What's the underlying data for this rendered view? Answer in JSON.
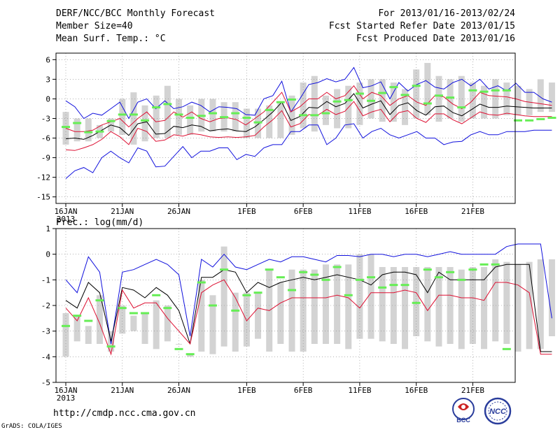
{
  "header": {
    "title": "DERF/NCC/BCC Monthly Forecast",
    "member": "Member Size=40",
    "variable": "Mean Surf. Temp.: °C",
    "period": "For 2013/01/16-2013/02/24",
    "started": "Fcst Started Refer Date 2013/01/15",
    "produced": "Fcst Produced Date 2013/01/16"
  },
  "footer": {
    "url": "http://cmdp.ncc.cma.gov.cn",
    "credit": "GrADS: COLA/IGES"
  },
  "logos": {
    "bcc": "BCC",
    "ncc": "NCC"
  },
  "colors": {
    "box": "#d3d3d3",
    "green": "#66ee55",
    "red": "#dd1133",
    "blue": "#1111dd",
    "black": "#000000"
  },
  "chart_data": [
    {
      "type": "line",
      "title": "Mean Surf. Temp.: °C",
      "ylim": [
        -16,
        7
      ],
      "yticks": [
        6,
        3,
        0,
        -3,
        -6,
        -9,
        -12,
        -15
      ],
      "xticks": [
        "16JAN",
        "21JAN",
        "26JAN",
        "1FEB",
        "6FEB",
        "11FEB",
        "16FEB",
        "21FEB"
      ],
      "xtick_days": [
        0,
        5,
        10,
        16,
        21,
        26,
        31,
        36
      ],
      "year_label": "2013",
      "series": [
        {
          "name": "max",
          "values": [
            -0.3,
            -1.2,
            -3,
            -2.2,
            -2.5,
            -1.5,
            -0.5,
            -3,
            -0.5,
            0,
            -1.5,
            -0.3,
            -1.5,
            -1.2,
            -0.5,
            -1,
            -2,
            -1.2,
            -1.3,
            -1.5,
            -2.4,
            -2.5,
            0,
            0.5,
            2.7,
            -2,
            0,
            2.2,
            2.5,
            3.1,
            2.6,
            3,
            4.8,
            1.7,
            2,
            2.6,
            0,
            2.5,
            1.2,
            2.2,
            2.8,
            1.8,
            1.5,
            2.5,
            3,
            2,
            3,
            1.5,
            2,
            1.2,
            2.4,
            1,
            1,
            0,
            -0.5
          ]
        },
        {
          "name": "upper",
          "values": [
            -4.5,
            -5,
            -5,
            -4.8,
            -4,
            -3.5,
            -3,
            -4.3,
            -3,
            -2,
            -3.5,
            -3.3,
            -2,
            -2.8,
            -2,
            -3,
            -3.5,
            -3,
            -2.9,
            -3.2,
            -4,
            -3,
            -2,
            -0.5,
            1,
            -2,
            -1.2,
            0,
            0,
            1,
            0,
            0.5,
            2,
            0,
            1,
            0.5,
            -1,
            0,
            0.5,
            -0.5,
            -1,
            0.5,
            0.3,
            -0.8,
            -1.5,
            -0.5,
            1,
            0.5,
            0.4,
            0.3,
            0,
            -0.4,
            -0.6,
            -0.8,
            -1
          ]
        },
        {
          "name": "mean",
          "values": [
            -6.1,
            -6,
            -6.2,
            -5.6,
            -4.8,
            -4,
            -4.4,
            -5.6,
            -3.8,
            -3.5,
            -5.4,
            -5.3,
            -4.2,
            -4.4,
            -4,
            -4.2,
            -4.9,
            -4.7,
            -4.6,
            -4.9,
            -5,
            -4.3,
            -3.2,
            -2,
            -0.5,
            -3.3,
            -2.7,
            -1.3,
            -1.4,
            -0.4,
            -1.2,
            -0.7,
            0.8,
            -1.4,
            -0.8,
            -0.3,
            -2.4,
            -1,
            -0.6,
            -1.8,
            -2.5,
            -1.2,
            -1.1,
            -2.1,
            -2.6,
            -1.7,
            -0.8,
            -1.3,
            -1.3,
            -1.1,
            -1.2,
            -1.3,
            -1.4,
            -1.4,
            -1.4
          ]
        },
        {
          "name": "lower",
          "values": [
            -7.8,
            -7.9,
            -7.5,
            -7,
            -6.2,
            -5,
            -5.8,
            -7,
            -4.5,
            -5,
            -6.5,
            -6.3,
            -5.5,
            -5.7,
            -5.3,
            -5.5,
            -5.8,
            -5.9,
            -5.8,
            -5.9,
            -5.8,
            -5.6,
            -4.3,
            -3.2,
            -1.8,
            -4.3,
            -3.8,
            -2.4,
            -2.5,
            -1.6,
            -2.4,
            -1.9,
            -0.4,
            -2.6,
            -2,
            -1.6,
            -3.5,
            -2.1,
            -1.8,
            -3,
            -3.6,
            -2.3,
            -2.3,
            -3.2,
            -3.8,
            -2.9,
            -2,
            -2.4,
            -2.5,
            -2.2,
            -2.4,
            -2.6,
            -2.7,
            -2.7,
            -2.7
          ]
        },
        {
          "name": "min",
          "values": [
            -12.2,
            -11,
            -10.5,
            -11.3,
            -9,
            -8,
            -9,
            -9.8,
            -7.5,
            -8,
            -10.4,
            -10.3,
            -8.8,
            -7.3,
            -9,
            -8,
            -8,
            -7.5,
            -7.5,
            -9.3,
            -8.5,
            -8.8,
            -7.5,
            -7,
            -7,
            -5,
            -5,
            -4,
            -4,
            -7,
            -6,
            -4,
            -3.8,
            -6,
            -5,
            -4.5,
            -5.5,
            -6,
            -5.5,
            -5,
            -6,
            -6,
            -7,
            -6.6,
            -6.5,
            -5.5,
            -5,
            -5.5,
            -5.5,
            -5,
            -5,
            -5,
            -4.8,
            -4.8,
            -4.8
          ]
        },
        {
          "name": "green",
          "values": [
            -4.3,
            -3.7,
            -5.1,
            -5,
            -3.4,
            -2.4,
            -2.4,
            -3.3,
            -1.3,
            -0.8,
            -2.4,
            -2.9,
            -2.6,
            -2.2,
            -2.8,
            -2.2,
            -2.9,
            -3.6,
            -1.7,
            -0.5,
            -0.1,
            -2.5,
            -2.5,
            -2.2,
            -0.4,
            -0.2,
            0.8,
            -0.3,
            0.9,
            1.8,
            0.6,
            2,
            -0.7,
            0.5,
            0.2,
            -1.3,
            1.3,
            1.1,
            1.3,
            1.3,
            -3.3,
            -3.3,
            -3.1,
            -2.9,
            -2.8,
            -2.7,
            -2.6,
            -2.6,
            -2.5,
            -2.5,
            -2.5,
            -2.4,
            -2.4,
            -2.4,
            -2.4
          ]
        }
      ],
      "boxes": [
        [
          -7,
          -2
        ],
        [
          -6.5,
          -3
        ],
        [
          -6.5,
          -3
        ],
        [
          -6,
          -4
        ],
        [
          -5,
          -3
        ],
        [
          -5.5,
          0
        ],
        [
          -7,
          1
        ],
        [
          -6.5,
          -1
        ],
        [
          -6,
          0.5
        ],
        [
          -6,
          2
        ],
        [
          -5.5,
          0
        ],
        [
          -5.5,
          -1
        ],
        [
          -5,
          0
        ],
        [
          -5,
          0
        ],
        [
          -5,
          -0.5
        ],
        [
          -5,
          -0.5
        ],
        [
          -6,
          -1.5
        ],
        [
          -6,
          -1.5
        ],
        [
          -6,
          -1
        ],
        [
          -6,
          -0.5
        ],
        [
          -5.5,
          0.5
        ],
        [
          -4.5,
          2.5
        ],
        [
          -5,
          3.5
        ],
        [
          -4,
          0.5
        ],
        [
          -4.5,
          1.5
        ],
        [
          -4.5,
          2
        ],
        [
          -4,
          2.5
        ],
        [
          -3,
          3
        ],
        [
          -3.5,
          3
        ],
        [
          -3.5,
          2.5
        ],
        [
          -4,
          1.5
        ],
        [
          -3,
          4.5
        ],
        [
          -2.5,
          5.5
        ],
        [
          -3.5,
          3.5
        ],
        [
          -3,
          3
        ],
        [
          -3.5,
          3.5
        ],
        [
          -3,
          2.5
        ],
        [
          -3,
          2
        ],
        [
          -3,
          3
        ],
        [
          -2.5,
          2.5
        ],
        [
          -2.5,
          2
        ],
        [
          -2.5,
          1.5
        ],
        [
          -2,
          3
        ],
        [
          -2,
          2.5
        ]
      ]
    },
    {
      "type": "line",
      "title": "Prec.: log(mm/d)",
      "ylim": [
        -5,
        1
      ],
      "yticks": [
        1,
        0,
        -1,
        -2,
        -3,
        -4,
        -5
      ],
      "xticks": [
        "16JAN",
        "21JAN",
        "26JAN",
        "1FEB",
        "6FEB",
        "11FEB",
        "16FEB",
        "21FEB"
      ],
      "xtick_days": [
        0,
        5,
        10,
        16,
        21,
        26,
        31,
        36
      ],
      "year_label": "2013",
      "series": [
        {
          "name": "max",
          "values": [
            -1,
            -1.5,
            -0.1,
            -0.7,
            -3.5,
            -0.7,
            -0.6,
            -0.4,
            -0.2,
            -0.4,
            -0.8,
            -3.2,
            -0.2,
            -0.5,
            0,
            -0.5,
            -0.6,
            -0.4,
            -0.2,
            -0.3,
            -0.1,
            -0.1,
            -0.2,
            -0.3,
            -0.05,
            -0.05,
            -0.1,
            0,
            0,
            -0.1,
            0,
            0,
            -0.1,
            0,
            0.1,
            0,
            0,
            0,
            0,
            0.3,
            0.4,
            0.4,
            0.4,
            -2.5
          ]
        },
        {
          "name": "mean",
          "values": [
            -1.8,
            -2.1,
            -1.1,
            -1.5,
            -3.4,
            -1.3,
            -1.4,
            -1.7,
            -1.3,
            -1.6,
            -2.2,
            -3.5,
            -0.9,
            -0.9,
            -0.6,
            -0.7,
            -1.5,
            -1.1,
            -1.3,
            -1.1,
            -1,
            -0.9,
            -1,
            -0.9,
            -0.8,
            -0.9,
            -1,
            -1.2,
            -0.8,
            -0.7,
            -0.7,
            -0.8,
            -1.5,
            -0.7,
            -1,
            -1,
            -1,
            -1,
            -0.5,
            -0.4,
            -0.4,
            -0.4,
            -3.8,
            -3.8
          ]
        },
        {
          "name": "upper",
          "values": [
            -2.1,
            -2.6,
            -1.7,
            -2.7,
            -3.9,
            -1.4,
            -2.1,
            -1.9,
            -1.9,
            -2.5,
            -3,
            -3.5,
            -1.5,
            -1.2,
            -1,
            -1.7,
            -2.6,
            -2.1,
            -2.2,
            -1.9,
            -1.7,
            -1.7,
            -1.7,
            -1.7,
            -1.6,
            -1.7,
            -2.1,
            -1.5,
            -1.5,
            -1.5,
            -1.4,
            -1.5,
            -2.2,
            -1.6,
            -1.6,
            -1.7,
            -1.7,
            -1.8,
            -1.1,
            -1.1,
            -1.2,
            -1.5,
            -3.9,
            -3.9
          ]
        },
        {
          "name": "green",
          "values": [
            -2.8,
            -2.4,
            -2.6,
            -1.8,
            -3.6,
            -2.1,
            -2.3,
            -2.3,
            -1.6,
            -2.1,
            -3.7,
            -3.9,
            -1.1,
            -2,
            -0.6,
            -2.2,
            -1.6,
            -1.5,
            -0.6,
            -0.9,
            -1.4,
            -0.7,
            -0.8,
            -1,
            -0.5,
            -1.6,
            -1,
            -0.9,
            -1.3,
            -1.2,
            -1.2,
            -1.9,
            -0.6,
            -0.9,
            -0.7,
            -1,
            -0.6,
            -0.4,
            -0.4,
            -3.7
          ]
        }
      ],
      "boxes": [
        [
          -4,
          -2.3
        ],
        [
          -3.4,
          -2.4
        ],
        [
          -3.5,
          -2.8
        ],
        [
          -3.5,
          -1.6
        ],
        [
          -3.8,
          -3
        ],
        [
          -3.1,
          -2
        ],
        [
          -3,
          -2.4
        ],
        [
          -3.5,
          -2.3
        ],
        [
          -3.7,
          -1.8
        ],
        [
          -3.4,
          -2
        ],
        [
          -3.5,
          -3.5
        ],
        [
          -4,
          -3.9
        ],
        [
          -3.8,
          -1
        ],
        [
          -3.9,
          -1.6
        ],
        [
          -3.6,
          0.3
        ],
        [
          -3.8,
          -1.5
        ],
        [
          -3.6,
          -1.5
        ],
        [
          -3.3,
          -1.5
        ],
        [
          -3.8,
          -0.6
        ],
        [
          -3.5,
          -1.1
        ],
        [
          -3.8,
          -0.6
        ],
        [
          -3.8,
          -0.6
        ],
        [
          -3.5,
          -0.6
        ],
        [
          -3.5,
          -0.4
        ],
        [
          -3.5,
          -0.4
        ],
        [
          -3.7,
          -0.4
        ],
        [
          -3.3,
          0
        ],
        [
          -3.3,
          0
        ],
        [
          -3.4,
          -0.5
        ],
        [
          -3.5,
          -0.5
        ],
        [
          -3.7,
          -0.5
        ],
        [
          -3.2,
          -0.5
        ],
        [
          -3.4,
          -0.5
        ],
        [
          -3.6,
          -0.5
        ],
        [
          -3.5,
          -0.5
        ],
        [
          -3.7,
          -0.6
        ],
        [
          -3.5,
          -0.5
        ],
        [
          -3.7,
          -0.5
        ],
        [
          -3.4,
          -0.2
        ],
        [
          -3.5,
          -0.3
        ],
        [
          -3.8,
          -0.4
        ],
        [
          -3.7,
          -0.3
        ],
        [
          -3.7,
          -0.2
        ],
        [
          -3.2,
          -0.2
        ]
      ]
    }
  ]
}
